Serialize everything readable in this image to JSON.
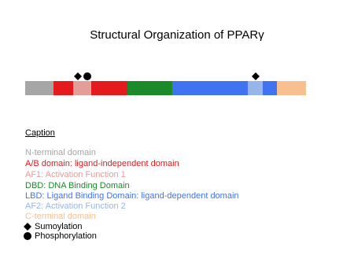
{
  "title": "Structural Organization of PPARγ",
  "caption": {
    "heading": "Caption",
    "items": [
      "N-terminal domain",
      "A/B domain: ligand-independent domain",
      "AF1: Activation Function 1",
      "DBD: DNA Binding Domain",
      "LBD: Ligand Binding Domain: ligand-dependent domain",
      "AF2: Activation Function 2",
      "C-terminal domain"
    ],
    "symbols": [
      "Sumoylation",
      "Phosphorylation"
    ]
  }
}
